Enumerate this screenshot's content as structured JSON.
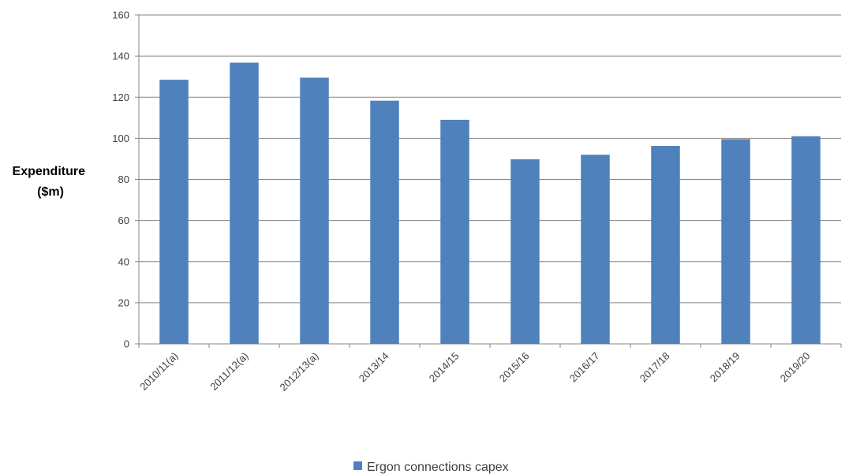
{
  "chart_data": {
    "type": "bar",
    "title": "",
    "xlabel": "",
    "ylabel_lines": [
      "Expenditure",
      "($m)"
    ],
    "categories": [
      "2010/11(a)",
      "2011/12(a)",
      "2012/13(a)",
      "2013/14",
      "2014/15",
      "2015/16",
      "2016/17",
      "2017/18",
      "2018/19",
      "2019/20"
    ],
    "series": [
      {
        "name": "Ergon connections capex",
        "color": "#4f81bd",
        "values": [
          128.5,
          136.8,
          129.5,
          118.3,
          109.0,
          89.8,
          92.0,
          96.3,
          99.6,
          101.0
        ]
      }
    ],
    "ylim": [
      0,
      160
    ],
    "yticks": [
      0,
      20,
      40,
      60,
      80,
      100,
      120,
      140,
      160
    ],
    "grid": true,
    "gridline_color": "#868686",
    "legend_position": "bottom"
  }
}
